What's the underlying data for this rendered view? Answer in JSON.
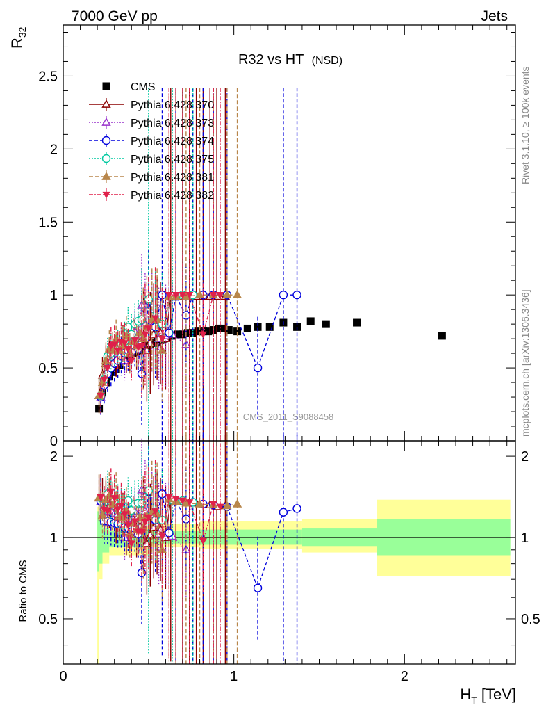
{
  "header": {
    "left": "7000 GeV pp",
    "right": "Jets",
    "title": "R32 vs HT",
    "title_suffix": "(NSD)",
    "watermark": "CMS_2011_S9088458",
    "side_top": "Rivet 3.1.10, ≥ 100k events",
    "side_bottom": "mcplots.cern.ch [arXiv:1306.3436]"
  },
  "chart_data": [
    {
      "type": "scatter",
      "ylabel": "R",
      "ylabel_sub": "32",
      "xlim": [
        0,
        2.65
      ],
      "ylim": [
        0,
        2.85
      ],
      "yticks": [
        "0",
        "0.5",
        "1",
        "1.5",
        "2",
        "2.5"
      ],
      "xticks": [
        "0",
        "1",
        "2"
      ],
      "series": [
        {
          "name": "CMS",
          "marker": "square",
          "color": "#000000",
          "dash": "none",
          "x": [
            0.21,
            0.23,
            0.25,
            0.27,
            0.29,
            0.31,
            0.33,
            0.35,
            0.37,
            0.39,
            0.41,
            0.43,
            0.45,
            0.47,
            0.49,
            0.51,
            0.53,
            0.55,
            0.57,
            0.59,
            0.61,
            0.64,
            0.67,
            0.7,
            0.73,
            0.76,
            0.79,
            0.82,
            0.85,
            0.88,
            0.91,
            0.94,
            0.97,
            1.02,
            1.08,
            1.14,
            1.21,
            1.29,
            1.37,
            1.45,
            1.54,
            1.72,
            2.22
          ],
          "y": [
            0.22,
            0.33,
            0.4,
            0.44,
            0.47,
            0.49,
            0.52,
            0.55,
            0.57,
            0.58,
            0.6,
            0.61,
            0.62,
            0.64,
            0.65,
            0.66,
            0.67,
            0.68,
            0.69,
            0.7,
            0.71,
            0.72,
            0.73,
            0.73,
            0.74,
            0.74,
            0.75,
            0.75,
            0.75,
            0.76,
            0.77,
            0.77,
            0.76,
            0.75,
            0.77,
            0.78,
            0.78,
            0.81,
            0.78,
            0.82,
            0.8,
            0.81,
            0.72
          ]
        },
        {
          "name": "Pythia 6.428 370",
          "marker": "triangle-open",
          "color": "#8b0000",
          "dash": "none",
          "x": [
            0.21,
            0.23,
            0.25,
            0.27,
            0.29,
            0.31,
            0.33,
            0.35,
            0.37,
            0.39,
            0.41,
            0.43,
            0.45,
            0.47,
            0.49,
            0.51,
            0.53,
            0.55,
            0.57,
            0.6,
            0.63,
            0.66,
            0.7,
            0.74,
            0.78,
            0.82,
            0.86,
            0.9,
            0.95
          ],
          "y": [
            0.31,
            0.45,
            0.53,
            0.58,
            0.61,
            0.57,
            0.62,
            0.66,
            0.6,
            0.62,
            0.7,
            0.63,
            0.68,
            0.7,
            0.62,
            0.67,
            0.73,
            0.77,
            0.74,
            0.7,
            0.99,
            0.99,
            0.99,
            0.99,
            0.99,
            0.99,
            0.99,
            0.99,
            0.99
          ]
        },
        {
          "name": "Pythia 6.428 373",
          "marker": "triangle-open",
          "color": "#9932cc",
          "dash": "2,2",
          "x": [
            0.22,
            0.24,
            0.26,
            0.28,
            0.3,
            0.32,
            0.34,
            0.36,
            0.38,
            0.4,
            0.42,
            0.44,
            0.46,
            0.48,
            0.52,
            0.56,
            0.6,
            0.64,
            0.72
          ],
          "y": [
            0.3,
            0.41,
            0.5,
            0.55,
            0.58,
            0.6,
            0.64,
            0.55,
            0.66,
            0.68,
            0.75,
            0.73,
            0.93,
            0.8,
            0.82,
            0.7,
            0.72,
            0.73,
            0.66
          ]
        },
        {
          "name": "Pythia 6.428 374",
          "marker": "circle-open",
          "color": "#0000dd",
          "dash": "5,3",
          "x": [
            0.22,
            0.24,
            0.26,
            0.28,
            0.3,
            0.32,
            0.34,
            0.36,
            0.38,
            0.4,
            0.42,
            0.44,
            0.46,
            0.5,
            0.54,
            0.58,
            0.62,
            0.66,
            0.72,
            0.76,
            0.82,
            0.88,
            0.96,
            1.14,
            1.29,
            1.37
          ],
          "y": [
            0.3,
            0.38,
            0.46,
            0.5,
            0.53,
            0.55,
            0.58,
            0.6,
            0.62,
            0.61,
            0.65,
            0.63,
            0.46,
            0.96,
            0.78,
            1.0,
            0.74,
            0.99,
            0.86,
            1.0,
            1.0,
            1.0,
            1.0,
            0.5,
            1.0,
            1.0
          ]
        },
        {
          "name": "Pythia 6.428 375",
          "marker": "circle-open",
          "color": "#00c8a0",
          "dash": "2,2",
          "x": [
            0.22,
            0.24,
            0.26,
            0.28,
            0.3,
            0.32,
            0.34,
            0.36,
            0.38,
            0.4,
            0.42,
            0.44,
            0.46,
            0.5,
            0.54,
            0.58,
            0.64,
            0.7,
            0.76
          ],
          "y": [
            0.31,
            0.42,
            0.58,
            0.6,
            0.64,
            0.63,
            0.66,
            0.68,
            0.78,
            0.73,
            0.8,
            0.82,
            0.83,
            0.97,
            0.83,
            0.8,
            0.99,
            1.0,
            1.0
          ]
        },
        {
          "name": "Pythia 6.428 381",
          "marker": "triangle",
          "color": "#b8864b",
          "dash": "6,3",
          "x": [
            0.21,
            0.23,
            0.25,
            0.27,
            0.29,
            0.31,
            0.33,
            0.35,
            0.37,
            0.39,
            0.41,
            0.43,
            0.45,
            0.47,
            0.49,
            0.52,
            0.55,
            0.58,
            0.62,
            0.66,
            0.72,
            0.8,
            0.88,
            0.96,
            1.02
          ],
          "y": [
            0.31,
            0.4,
            0.55,
            0.63,
            0.62,
            0.7,
            0.62,
            0.65,
            0.72,
            0.6,
            0.68,
            0.65,
            0.74,
            0.7,
            0.78,
            0.83,
            0.83,
            0.62,
            0.99,
            0.99,
            0.99,
            1.0,
            1.0,
            1.0,
            1.0
          ]
        },
        {
          "name": "Pythia 6.428 382",
          "marker": "triangle-down",
          "color": "#e0204a",
          "dash": "6,2,2,2",
          "x": [
            0.22,
            0.24,
            0.26,
            0.28,
            0.3,
            0.32,
            0.34,
            0.36,
            0.38,
            0.4,
            0.42,
            0.44,
            0.46,
            0.48,
            0.5,
            0.54,
            0.58,
            0.62,
            0.66,
            0.7,
            0.74,
            0.82,
            0.88,
            0.92
          ],
          "y": [
            0.31,
            0.42,
            0.5,
            0.65,
            0.66,
            0.62,
            0.68,
            0.67,
            0.63,
            0.55,
            0.69,
            0.64,
            0.65,
            0.73,
            0.77,
            0.84,
            0.7,
            1.0,
            1.0,
            1.0,
            1.0,
            0.73,
            1.0,
            1.0
          ]
        }
      ]
    },
    {
      "type": "scatter",
      "ylabel": "Ratio to CMS",
      "xlabel": "H",
      "xlabel_sub": "T",
      "xlabel_unit": "[TeV]",
      "xlim": [
        0,
        2.65
      ],
      "ylim": [
        0.34,
        2.28
      ],
      "log_y": true,
      "yticks_left": [
        "0.5",
        "1",
        "2"
      ],
      "yticks_right": [
        "0.5",
        "1",
        "2"
      ],
      "xticks": [
        "0",
        "1",
        "2"
      ],
      "ratio_y": {
        "Pythia 6.428 370": [
          1.4,
          1.36,
          1.33,
          1.32,
          1.3,
          1.16,
          1.19,
          1.2,
          1.05,
          1.07,
          1.17,
          1.03,
          1.1,
          1.09,
          0.95,
          1.02,
          1.09,
          1.13,
          1.07,
          1.0,
          1.39,
          1.38,
          1.36,
          1.35,
          1.34,
          1.33,
          1.32,
          1.3,
          1.31
        ],
        "Pythia 6.428 373": [
          1.36,
          1.24,
          1.25,
          1.25,
          1.23,
          1.22,
          1.23,
          1.0,
          1.16,
          1.17,
          1.25,
          1.2,
          1.5,
          1.25,
          1.24,
          1.03,
          1.03,
          1.01,
          0.9
        ],
        "Pythia 6.428 374": [
          1.36,
          1.15,
          1.15,
          1.14,
          1.13,
          1.12,
          1.12,
          1.09,
          1.09,
          1.05,
          1.08,
          1.03,
          0.74,
          1.48,
          1.16,
          1.45,
          1.04,
          1.36,
          1.17,
          1.35,
          1.33,
          1.32,
          1.3,
          0.65,
          1.24,
          1.28
        ],
        "Pythia 6.428 375": [
          1.4,
          1.27,
          1.45,
          1.36,
          1.36,
          1.29,
          1.27,
          1.24,
          1.37,
          1.26,
          1.33,
          1.34,
          1.34,
          1.49,
          1.24,
          1.16,
          1.38,
          1.37,
          1.35
        ],
        "Pythia 6.428 381": [
          1.41,
          1.21,
          1.38,
          1.43,
          1.32,
          1.43,
          1.19,
          1.18,
          1.26,
          1.03,
          1.13,
          1.07,
          1.19,
          1.09,
          1.2,
          1.24,
          1.22,
          0.9,
          1.39,
          1.36,
          1.34,
          1.33,
          1.32,
          1.31,
          1.33
        ],
        "Pythia 6.428 382": [
          1.41,
          1.27,
          1.25,
          1.48,
          1.4,
          1.27,
          1.31,
          1.22,
          1.11,
          0.95,
          1.15,
          1.05,
          1.05,
          1.14,
          1.18,
          1.25,
          1.01,
          1.41,
          1.39,
          1.37,
          1.35,
          0.97,
          1.33,
          1.3
        ]
      },
      "bands": [
        {
          "x0": 0.2,
          "x1": 0.21,
          "y0_inner": 0.75,
          "y1_inner": 1.25,
          "y0_outer": 0.34,
          "y1_outer": 1.3
        },
        {
          "x0": 0.21,
          "x1": 0.23,
          "y0_inner": 0.8,
          "y1_inner": 1.16,
          "y0_outer": 0.7,
          "y1_outer": 1.2
        },
        {
          "x0": 0.23,
          "x1": 0.27,
          "y0_inner": 0.88,
          "y1_inner": 1.08,
          "y0_outer": 0.8,
          "y1_outer": 1.12
        },
        {
          "x0": 0.27,
          "x1": 0.5,
          "y0_inner": 0.92,
          "y1_inner": 1.06,
          "y0_outer": 0.86,
          "y1_outer": 1.1
        },
        {
          "x0": 0.5,
          "x1": 0.8,
          "y0_inner": 0.95,
          "y1_inner": 1.06,
          "y0_outer": 0.92,
          "y1_outer": 1.12
        },
        {
          "x0": 0.8,
          "x1": 1.4,
          "y0_inner": 0.94,
          "y1_inner": 1.07,
          "y0_outer": 0.91,
          "y1_outer": 1.15
        },
        {
          "x0": 1.4,
          "x1": 1.84,
          "y0_inner": 0.93,
          "y1_inner": 1.08,
          "y0_outer": 0.88,
          "y1_outer": 1.17
        },
        {
          "x0": 1.84,
          "x1": 2.62,
          "y0_inner": 0.86,
          "y1_inner": 1.17,
          "y0_outer": 0.72,
          "y1_outer": 1.38
        }
      ]
    }
  ]
}
